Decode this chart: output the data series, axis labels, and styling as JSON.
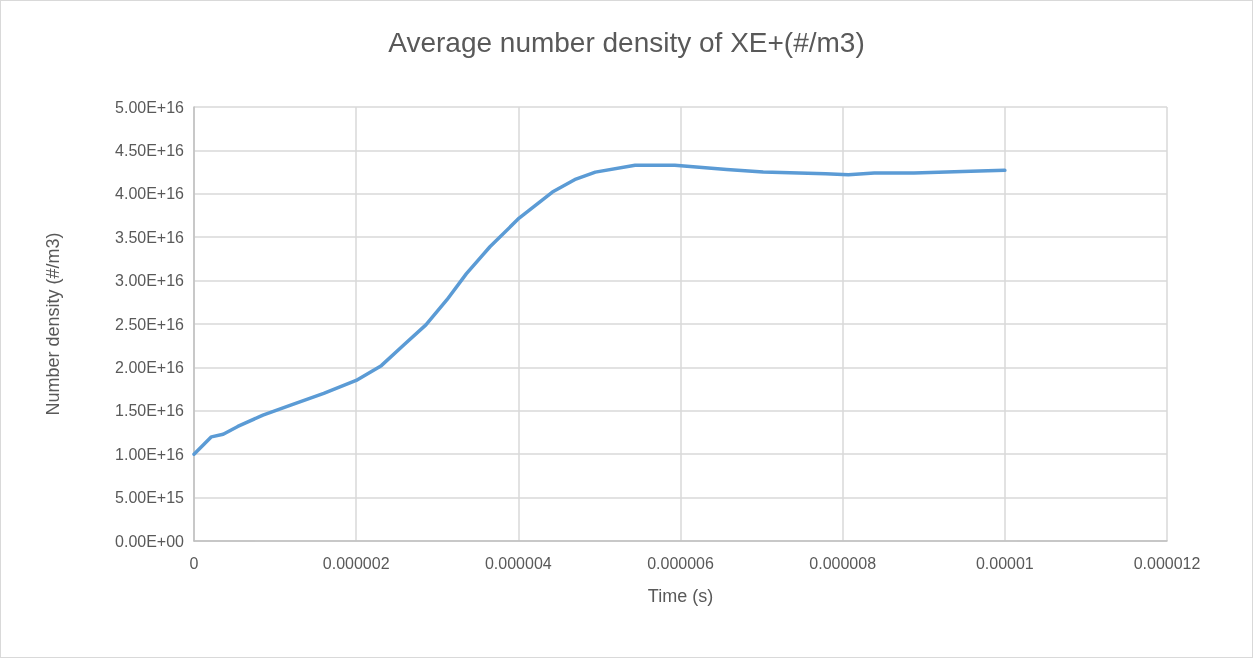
{
  "chart_data": {
    "type": "line",
    "title": "Average number density of XE+(#/m3)",
    "xlabel": "Time (s)",
    "ylabel": "Number density (#/m3)",
    "x": [
      0,
      2.15e-07,
      3.6e-07,
      5.4e-07,
      8.5e-07,
      1.21e-06,
      1.6e-06,
      2e-06,
      2.31e-06,
      2.59e-06,
      2.86e-06,
      3.12e-06,
      3.36e-06,
      3.65e-06,
      4.01e-06,
      4.42e-06,
      4.71e-06,
      4.95e-06,
      5.44e-06,
      5.93e-06,
      6.57e-06,
      7.02e-06,
      7.79e-06,
      8.07e-06,
      8.39e-06,
      8.88e-06,
      9.58e-06,
      1e-05
    ],
    "series": [
      {
        "color": "#5b9bd5",
        "values": [
          1e+16,
          1.2e+16,
          1.23e+16,
          1.32e+16,
          1.45e+16,
          1.57e+16,
          1.7e+16,
          1.85e+16,
          2.02e+16,
          2.26e+16,
          2.49e+16,
          2.78e+16,
          3.08e+16,
          3.39e+16,
          3.72e+16,
          4.02e+16,
          4.17e+16,
          4.25e+16,
          4.33e+16,
          4.33e+16,
          4.28e+16,
          4.25e+16,
          4.23e+16,
          4.22e+16,
          4.24e+16,
          4.24e+16,
          4.26e+16,
          4.27e+16
        ]
      }
    ],
    "xlim": [
      0,
      1.2e-05
    ],
    "xticks": [
      0,
      {
        "value": 2e-06,
        "label": "0.000002"
      },
      {
        "value": 4e-06,
        "label": "0.000004"
      },
      {
        "value": 6e-06,
        "label": "0.000006"
      },
      {
        "value": 8e-06,
        "label": "0.000008"
      },
      {
        "value": 1e-05,
        "label": "0.00001"
      },
      {
        "value": 1.2e-05,
        "label": "0.000012"
      }
    ],
    "ylim": [
      0,
      5e+16
    ],
    "yticks": [
      {
        "value": 0,
        "label": "0.00E+00"
      },
      {
        "value": 5000000000000000.0,
        "label": "5.00E+15"
      },
      {
        "value": 1e+16,
        "label": "1.00E+16"
      },
      {
        "value": 1.5e+16,
        "label": "1.50E+16"
      },
      {
        "value": 2e+16,
        "label": "2.00E+16"
      },
      {
        "value": 2.5e+16,
        "label": "2.50E+16"
      },
      {
        "value": 3e+16,
        "label": "3.00E+16"
      },
      {
        "value": 3.5e+16,
        "label": "3.50E+16"
      },
      {
        "value": 4e+16,
        "label": "4.00E+16"
      },
      {
        "value": 4.5e+16,
        "label": "4.50E+16"
      },
      {
        "value": 5e+16,
        "label": "5.00E+16"
      }
    ],
    "grid": true,
    "marker": "none",
    "line_style": "solid"
  }
}
